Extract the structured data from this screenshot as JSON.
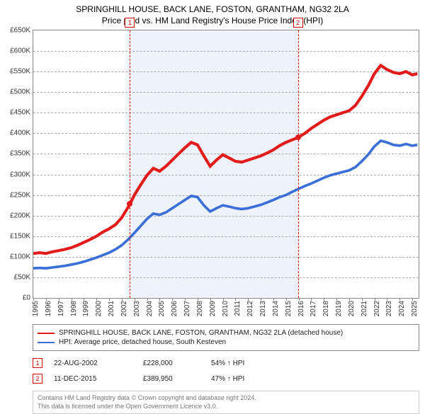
{
  "title_line1": "SPRINGHILL HOUSE, BACK LANE, FOSTON, GRANTHAM, NG32 2LA",
  "title_line2": "Price paid vs. HM Land Registry's House Price Index (HPI)",
  "chart": {
    "type": "line",
    "background_color": "#ffffff",
    "shade_color": "#eef3fb",
    "grid_color": "#aaaaaa",
    "border_color": "#888888",
    "x": {
      "min": 1995.0,
      "max": 2025.5,
      "ticks": [
        1995,
        1996,
        1997,
        1998,
        1999,
        2000,
        2001,
        2002,
        2003,
        2004,
        2005,
        2006,
        2007,
        2008,
        2009,
        2010,
        2011,
        2012,
        2013,
        2014,
        2015,
        2016,
        2017,
        2018,
        2019,
        2020,
        2021,
        2022,
        2023,
        2024,
        2025
      ],
      "tick_labels": [
        "1995",
        "1996",
        "1997",
        "1998",
        "1999",
        "2000",
        "2001",
        "2002",
        "2003",
        "2004",
        "2005",
        "2006",
        "2007",
        "2008",
        "2009",
        "2010",
        "2011",
        "2012",
        "2013",
        "2014",
        "2015",
        "2016",
        "2017",
        "2018",
        "2019",
        "2020",
        "2021",
        "2022",
        "2023",
        "2024",
        "2025"
      ]
    },
    "y": {
      "min": 0,
      "max": 650000,
      "ticks": [
        0,
        50000,
        100000,
        150000,
        200000,
        250000,
        300000,
        350000,
        400000,
        450000,
        500000,
        550000,
        600000,
        650000
      ],
      "tick_labels": [
        "£0",
        "£50K",
        "£100K",
        "£150K",
        "£200K",
        "£250K",
        "£300K",
        "£350K",
        "£400K",
        "£450K",
        "£500K",
        "£550K",
        "£600K",
        "£650K"
      ]
    },
    "series": [
      {
        "id": "subject",
        "label": "SPRINGHILL HOUSE, BACK LANE, FOSTON, GRANTHAM, NG32 2LA (detached house)",
        "color": "#e21b1b",
        "width": 1.6,
        "data": [
          [
            1995.0,
            108000
          ],
          [
            1995.5,
            110000
          ],
          [
            1996.0,
            108000
          ],
          [
            1996.5,
            112000
          ],
          [
            1997.0,
            115000
          ],
          [
            1997.5,
            118000
          ],
          [
            1998.0,
            122000
          ],
          [
            1998.5,
            128000
          ],
          [
            1999.0,
            135000
          ],
          [
            1999.5,
            142000
          ],
          [
            2000.0,
            150000
          ],
          [
            2000.5,
            160000
          ],
          [
            2001.0,
            168000
          ],
          [
            2001.5,
            178000
          ],
          [
            2002.0,
            195000
          ],
          [
            2002.65,
            228000
          ],
          [
            2003.0,
            250000
          ],
          [
            2003.5,
            275000
          ],
          [
            2004.0,
            298000
          ],
          [
            2004.5,
            315000
          ],
          [
            2005.0,
            308000
          ],
          [
            2005.5,
            320000
          ],
          [
            2006.0,
            335000
          ],
          [
            2006.5,
            350000
          ],
          [
            2007.0,
            365000
          ],
          [
            2007.5,
            378000
          ],
          [
            2008.0,
            372000
          ],
          [
            2008.5,
            345000
          ],
          [
            2009.0,
            320000
          ],
          [
            2009.5,
            335000
          ],
          [
            2010.0,
            348000
          ],
          [
            2010.5,
            340000
          ],
          [
            2011.0,
            332000
          ],
          [
            2011.5,
            330000
          ],
          [
            2012.0,
            335000
          ],
          [
            2012.5,
            340000
          ],
          [
            2013.0,
            345000
          ],
          [
            2013.5,
            352000
          ],
          [
            2014.0,
            360000
          ],
          [
            2014.5,
            370000
          ],
          [
            2015.0,
            378000
          ],
          [
            2015.95,
            389950
          ],
          [
            2016.5,
            400000
          ],
          [
            2017.0,
            412000
          ],
          [
            2017.5,
            422000
          ],
          [
            2018.0,
            432000
          ],
          [
            2018.5,
            440000
          ],
          [
            2019.0,
            445000
          ],
          [
            2019.5,
            450000
          ],
          [
            2020.0,
            455000
          ],
          [
            2020.5,
            468000
          ],
          [
            2021.0,
            490000
          ],
          [
            2021.5,
            515000
          ],
          [
            2022.0,
            545000
          ],
          [
            2022.5,
            565000
          ],
          [
            2023.0,
            555000
          ],
          [
            2023.5,
            548000
          ],
          [
            2024.0,
            545000
          ],
          [
            2024.5,
            550000
          ],
          [
            2025.0,
            542000
          ],
          [
            2025.4,
            545000
          ]
        ]
      },
      {
        "id": "hpi",
        "label": "HPI: Average price, detached house, South Kesteven",
        "color": "#3a6fd8",
        "width": 1.4,
        "data": [
          [
            1995.0,
            72000
          ],
          [
            1995.5,
            73000
          ],
          [
            1996.0,
            72000
          ],
          [
            1996.5,
            74000
          ],
          [
            1997.0,
            76000
          ],
          [
            1997.5,
            78000
          ],
          [
            1998.0,
            81000
          ],
          [
            1998.5,
            84000
          ],
          [
            1999.0,
            88000
          ],
          [
            1999.5,
            93000
          ],
          [
            2000.0,
            98000
          ],
          [
            2000.5,
            104000
          ],
          [
            2001.0,
            110000
          ],
          [
            2001.5,
            118000
          ],
          [
            2002.0,
            128000
          ],
          [
            2002.5,
            142000
          ],
          [
            2003.0,
            158000
          ],
          [
            2003.5,
            175000
          ],
          [
            2004.0,
            192000
          ],
          [
            2004.5,
            205000
          ],
          [
            2005.0,
            202000
          ],
          [
            2005.5,
            208000
          ],
          [
            2006.0,
            218000
          ],
          [
            2006.5,
            228000
          ],
          [
            2007.0,
            238000
          ],
          [
            2007.5,
            248000
          ],
          [
            2008.0,
            245000
          ],
          [
            2008.5,
            225000
          ],
          [
            2009.0,
            210000
          ],
          [
            2009.5,
            218000
          ],
          [
            2010.0,
            225000
          ],
          [
            2010.5,
            222000
          ],
          [
            2011.0,
            218000
          ],
          [
            2011.5,
            216000
          ],
          [
            2012.0,
            218000
          ],
          [
            2012.5,
            222000
          ],
          [
            2013.0,
            226000
          ],
          [
            2013.5,
            232000
          ],
          [
            2014.0,
            238000
          ],
          [
            2014.5,
            245000
          ],
          [
            2015.0,
            250000
          ],
          [
            2015.5,
            258000
          ],
          [
            2016.0,
            265000
          ],
          [
            2016.5,
            272000
          ],
          [
            2017.0,
            278000
          ],
          [
            2017.5,
            285000
          ],
          [
            2018.0,
            292000
          ],
          [
            2018.5,
            298000
          ],
          [
            2019.0,
            302000
          ],
          [
            2019.5,
            306000
          ],
          [
            2020.0,
            310000
          ],
          [
            2020.5,
            318000
          ],
          [
            2021.0,
            332000
          ],
          [
            2021.5,
            348000
          ],
          [
            2022.0,
            368000
          ],
          [
            2022.5,
            382000
          ],
          [
            2023.0,
            378000
          ],
          [
            2023.5,
            372000
          ],
          [
            2024.0,
            370000
          ],
          [
            2024.5,
            374000
          ],
          [
            2025.0,
            370000
          ],
          [
            2025.4,
            372000
          ]
        ]
      }
    ],
    "markers": [
      {
        "n": "1",
        "x": 2002.65,
        "y": 228000,
        "dot_color": "#e21b1b"
      },
      {
        "n": "2",
        "x": 2015.95,
        "y": 389950,
        "dot_color": "#e21b1b"
      }
    ]
  },
  "legend": {
    "items": [
      {
        "color": "#e21b1b",
        "text": "SPRINGHILL HOUSE, BACK LANE, FOSTON, GRANTHAM, NG32 2LA (detached house)"
      },
      {
        "color": "#3a6fd8",
        "text": "HPI: Average price, detached house, South Kesteven"
      }
    ]
  },
  "events": [
    {
      "n": "1",
      "date": "22-AUG-2002",
      "price": "£228,000",
      "pct": "54% ↑ HPI"
    },
    {
      "n": "2",
      "date": "11-DEC-2015",
      "price": "£389,950",
      "pct": "47% ↑ HPI"
    }
  ],
  "footer_line1": "Contains HM Land Registry data © Crown copyright and database right 2024.",
  "footer_line2": "This data is licensed under the Open Government Licence v3.0."
}
